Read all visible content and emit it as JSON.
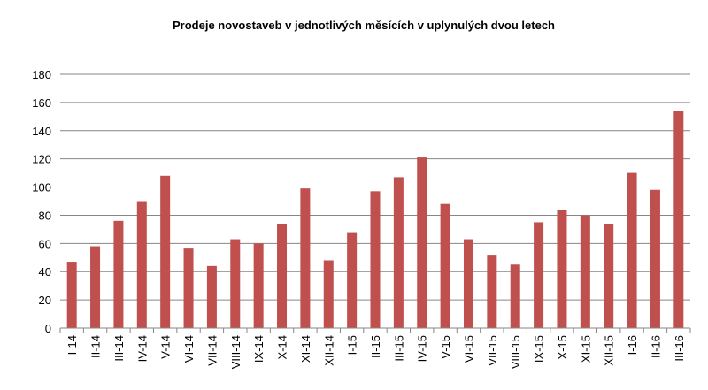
{
  "chart_data": {
    "type": "bar",
    "title": "Prodeje novostaveb v jednotlivých měsících v uplynulých dvou letech",
    "xlabel": "",
    "ylabel": "",
    "ylim": [
      0,
      180
    ],
    "yticks": [
      "0",
      "20",
      "40",
      "60",
      "80",
      "100",
      "120",
      "140",
      "160",
      "180"
    ],
    "grid": true,
    "legend": "none",
    "bar_color": "#c0504d",
    "categories": [
      "I-14",
      "II-14",
      "III-14",
      "IV-14",
      "V-14",
      "VI-14",
      "VII-14",
      "VIII-14",
      "IX-14",
      "X-14",
      "XI-14",
      "XII-14",
      "I-15",
      "II-15",
      "III-15",
      "IV-15",
      "V-15",
      "VI-15",
      "VII-15",
      "VIII-15",
      "IX-15",
      "X-15",
      "XI-15",
      "XII-15",
      "I-16",
      "II-16",
      "III-16"
    ],
    "values": [
      47,
      58,
      76,
      90,
      108,
      57,
      44,
      63,
      60,
      74,
      99,
      48,
      68,
      97,
      107,
      121,
      88,
      63,
      52,
      45,
      75,
      84,
      80,
      74,
      110,
      98,
      154
    ]
  }
}
